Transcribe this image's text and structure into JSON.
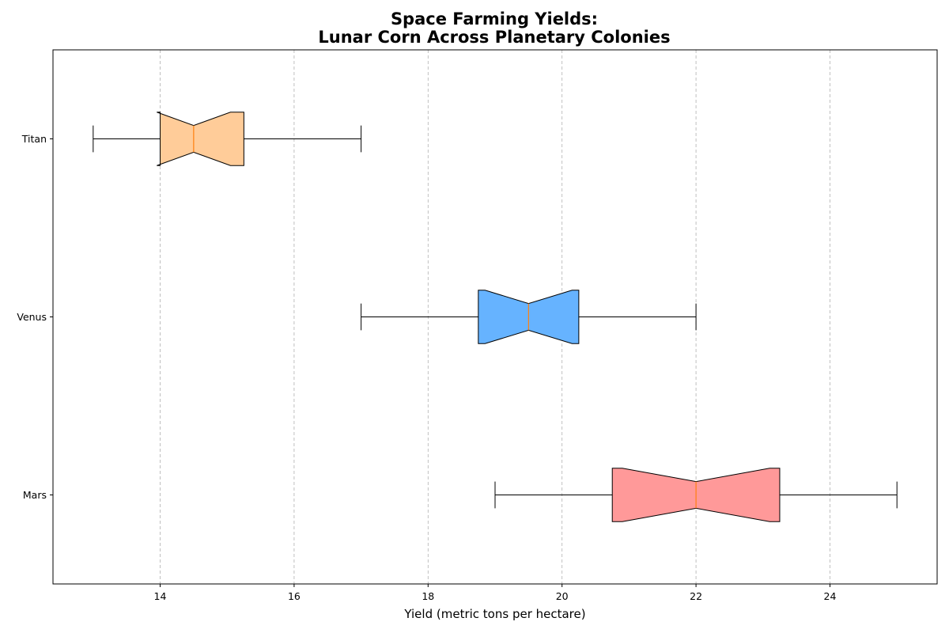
{
  "chart_data": {
    "type": "boxplot",
    "orientation": "horizontal",
    "notched": true,
    "title": [
      "Space Farming Yields:",
      "Lunar Corn Across Planetary Colonies"
    ],
    "xlabel": "Yield (metric tons per hectare)",
    "ylabel": "",
    "xlim": [
      12.4,
      25.6
    ],
    "xticks": [
      14,
      16,
      18,
      20,
      22,
      24
    ],
    "grid": "x-dashed",
    "series": [
      {
        "name": "Mars",
        "whisker_low": 19.0,
        "q1": 20.75,
        "median": 22.0,
        "q3": 23.25,
        "whisker_high": 25.0,
        "notch_low": 20.9,
        "notch_high": 23.1,
        "color": "#ff9999"
      },
      {
        "name": "Venus",
        "whisker_low": 17.0,
        "q1": 18.75,
        "median": 19.5,
        "q3": 20.25,
        "whisker_high": 22.0,
        "notch_low": 18.85,
        "notch_high": 20.15,
        "color": "#66b3ff"
      },
      {
        "name": "Titan",
        "whisker_low": 13.0,
        "q1": 14.0,
        "median": 14.5,
        "q3": 15.25,
        "whisker_high": 17.0,
        "notch_low": 13.95,
        "notch_high": 15.05,
        "color": "#ffcc99"
      }
    ],
    "median_color": "#ff7f0e"
  }
}
